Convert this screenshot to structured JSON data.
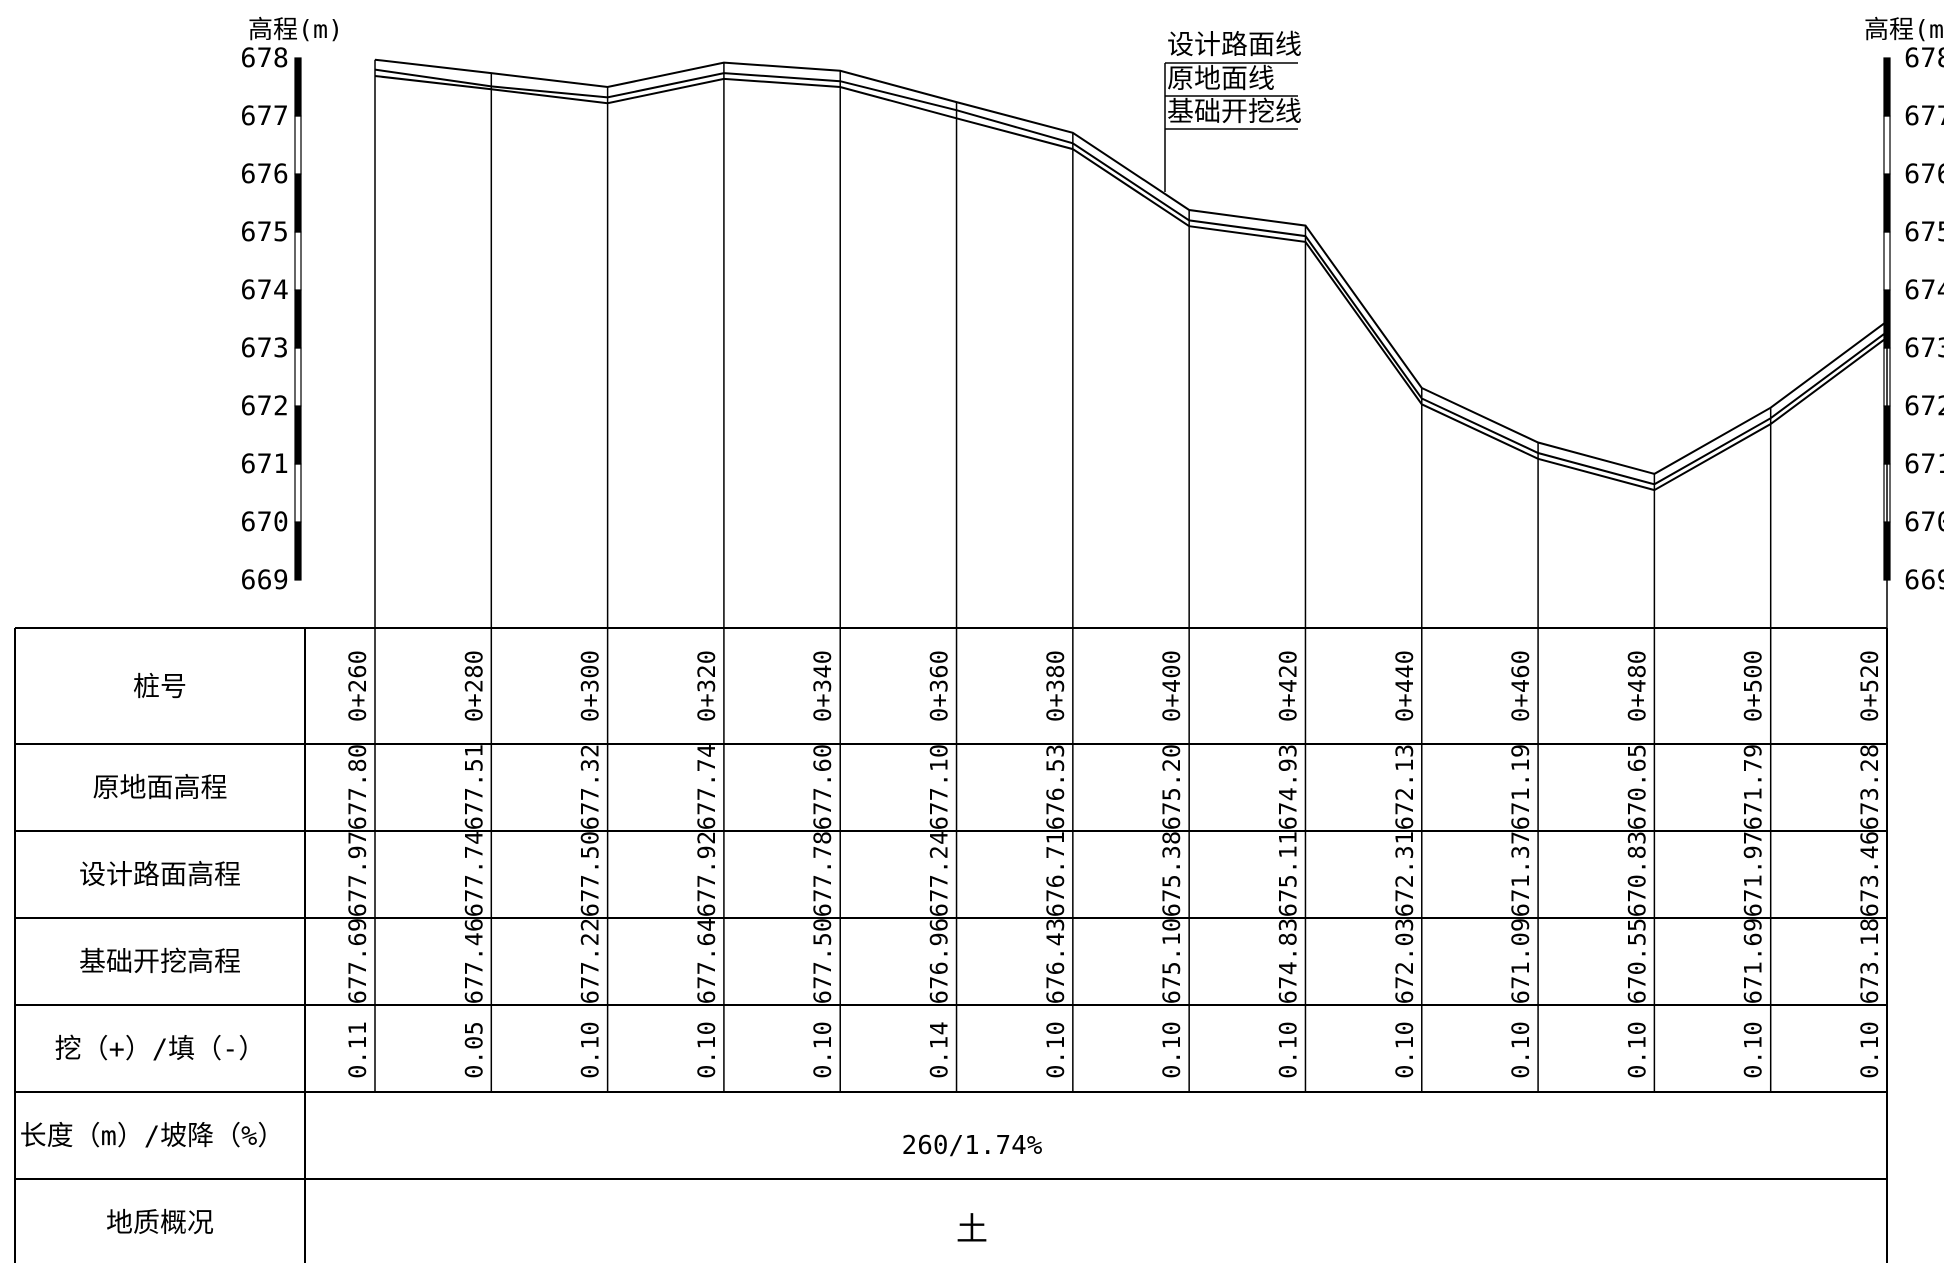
{
  "axis": {
    "left_label": "高程(m)",
    "right_label": "高程(m)",
    "ticks": [
      678,
      677,
      676,
      675,
      674,
      673,
      672,
      671,
      670,
      669
    ],
    "range": [
      669,
      678
    ]
  },
  "legend": {
    "design_line": "设计路面线",
    "ground_line": "原地面线",
    "excavation_line": "基础开挖线"
  },
  "table": {
    "row_labels": {
      "station": "桩号",
      "ground": "原地面高程",
      "design": "设计路面高程",
      "excavation": "基础开挖高程",
      "cutfill": "挖（+）/填（-）",
      "length_slope": "长度（m）/坡降（%）",
      "geology": "地质概况"
    },
    "length_slope_value": "260/1.74%",
    "geology_value": "土"
  },
  "chart_data": {
    "type": "line",
    "x": [
      "0+260",
      "0+280",
      "0+300",
      "0+320",
      "0+340",
      "0+360",
      "0+380",
      "0+400",
      "0+420",
      "0+440",
      "0+460",
      "0+480",
      "0+500",
      "0+520"
    ],
    "ylabel": "高程(m)",
    "ylim": [
      669,
      678
    ],
    "series": [
      {
        "name": "设计路面线",
        "values": [
          677.97,
          677.74,
          677.5,
          677.92,
          677.78,
          677.24,
          676.71,
          675.38,
          675.11,
          672.31,
          671.37,
          670.83,
          671.97,
          673.46
        ]
      },
      {
        "name": "原地面线",
        "values": [
          677.8,
          677.51,
          677.32,
          677.74,
          677.6,
          677.1,
          676.53,
          675.2,
          674.93,
          672.13,
          671.19,
          670.65,
          671.79,
          673.28
        ]
      },
      {
        "name": "基础开挖线",
        "values": [
          677.69,
          677.46,
          677.22,
          677.64,
          677.5,
          676.96,
          676.43,
          675.1,
          674.83,
          672.03,
          671.09,
          670.55,
          671.69,
          673.18
        ]
      }
    ],
    "ground_text": [
      "677.80",
      "677.51",
      "677.32",
      "677.74",
      "677.60",
      "677.10",
      "676.53",
      "675.20",
      "674.93",
      "672.13",
      "671.19",
      "670.65",
      "671.79",
      "673.28"
    ],
    "design_text": [
      "677.97",
      "677.74",
      "677.50",
      "677.92",
      "677.78",
      "677.24",
      "676.71",
      "675.38",
      "675.11",
      "672.31",
      "671.37",
      "670.83",
      "671.97",
      "673.46"
    ],
    "excavation_text": [
      "677.69",
      "677.46",
      "677.22",
      "677.64",
      "677.50",
      "676.96",
      "676.43",
      "675.10",
      "674.83",
      "672.03",
      "671.09",
      "670.55",
      "671.69",
      "673.18"
    ],
    "cutfill_text": [
      "0.11",
      "0.05",
      "0.10",
      "0.10",
      "0.10",
      "0.14",
      "0.10",
      "0.10",
      "0.10",
      "0.10",
      "0.10",
      "0.10",
      "0.10",
      "0.10"
    ]
  }
}
